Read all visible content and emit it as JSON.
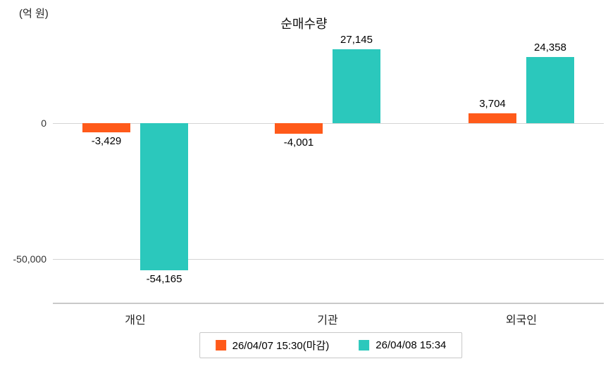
{
  "chart_data": {
    "type": "bar",
    "title": "순매수량",
    "unit_label": "(억 원)",
    "categories": [
      "개인",
      "기관",
      "외국인"
    ],
    "series": [
      {
        "name": "26/04/07 15:30(마감)",
        "color": "#ff5a1a",
        "values": [
          -3429,
          -4001,
          3704
        ]
      },
      {
        "name": "26/04/08 15:34",
        "color": "#2bc8bc",
        "values": [
          -54165,
          27145,
          24358
        ]
      }
    ],
    "yticks": [
      {
        "value": 0,
        "label": "0"
      },
      {
        "value": -50000,
        "label": "-50,000"
      }
    ],
    "ylim": [
      -60000,
      32000
    ],
    "grid": true,
    "legend_position": "bottom"
  }
}
